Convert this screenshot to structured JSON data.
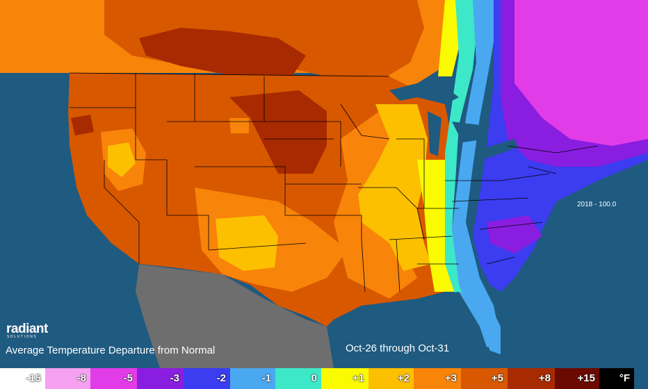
{
  "title": "Average Temperature Departure from Normal",
  "period": "Oct-26 through Oct-31",
  "stamp": "2018 - 100.0",
  "logo": {
    "name": "radiant",
    "sub": "SOLUTIONS"
  },
  "unit": "°F",
  "legend": [
    {
      "label": "-15",
      "color": "#ffffff"
    },
    {
      "label": "-8",
      "color": "#f5a0f0"
    },
    {
      "label": "-5",
      "color": "#e23ce8"
    },
    {
      "label": "-3",
      "color": "#8a1ee0"
    },
    {
      "label": "-2",
      "color": "#3c3cf0"
    },
    {
      "label": "-1",
      "color": "#4aa8f0"
    },
    {
      "label": "0",
      "color": "#3ce8c8"
    },
    {
      "label": "+1",
      "color": "#fafa00"
    },
    {
      "label": "+2",
      "color": "#fcc000"
    },
    {
      "label": "+3",
      "color": "#f8840a"
    },
    {
      "label": "+5",
      "color": "#d85800"
    },
    {
      "label": "+8",
      "color": "#a82a00"
    },
    {
      "label": "+15",
      "color": "#6a0a00"
    }
  ],
  "colors": {
    "ocean": "#1f5a80",
    "mexico": "#6e6e6e",
    "borders": "#000000"
  }
}
